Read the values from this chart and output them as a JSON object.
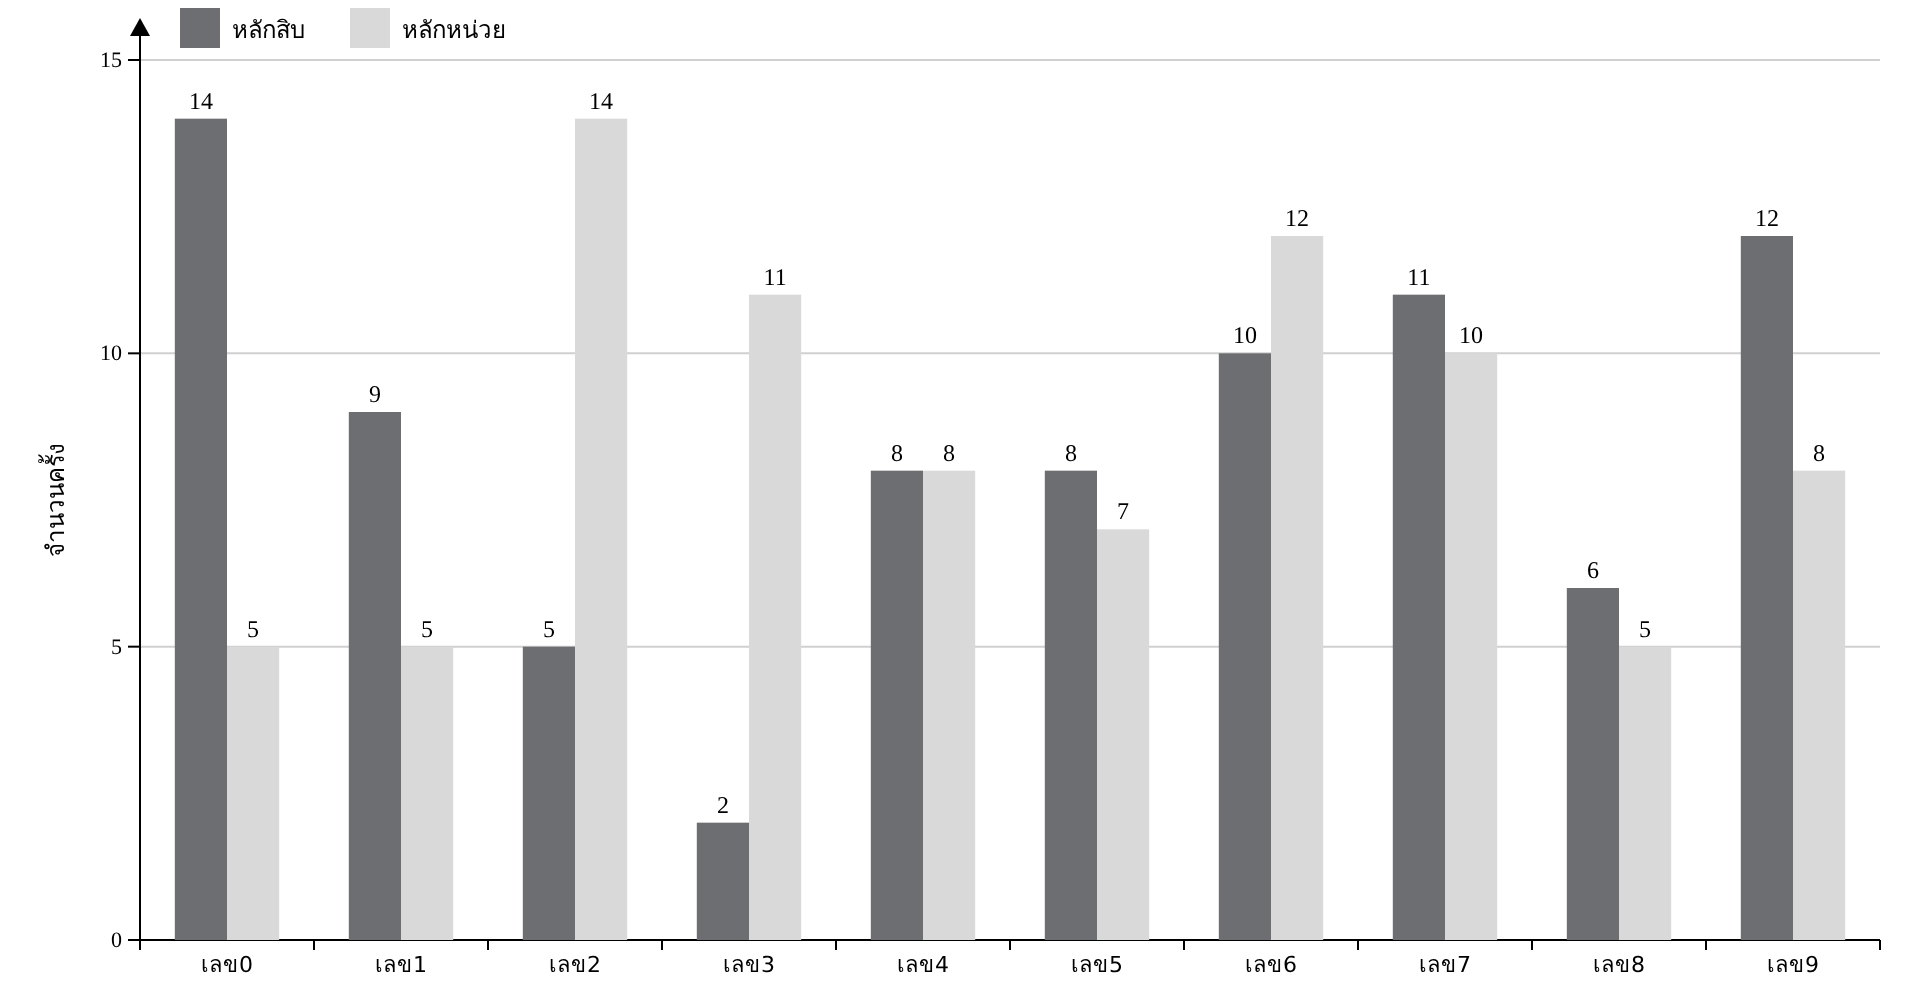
{
  "chart_data": {
    "type": "bar",
    "ylabel": "จำนวนครั้ง",
    "categories": [
      "เลข0",
      "เลข1",
      "เลข2",
      "เลข3",
      "เลข4",
      "เลข5",
      "เลข6",
      "เลข7",
      "เลข8",
      "เลข9"
    ],
    "series": [
      {
        "name": "หลักสิบ",
        "color": "#6d6e71",
        "values": [
          14,
          9,
          5,
          2,
          8,
          8,
          10,
          11,
          6,
          12
        ]
      },
      {
        "name": "หลักหน่วย",
        "color": "#d9d9d9",
        "values": [
          5,
          5,
          14,
          11,
          8,
          7,
          12,
          10,
          5,
          8
        ]
      }
    ],
    "ylim": [
      0,
      15
    ],
    "yticks": [
      0,
      5,
      10,
      15
    ],
    "grid": "y",
    "legend": "top left",
    "data_labels": true
  }
}
